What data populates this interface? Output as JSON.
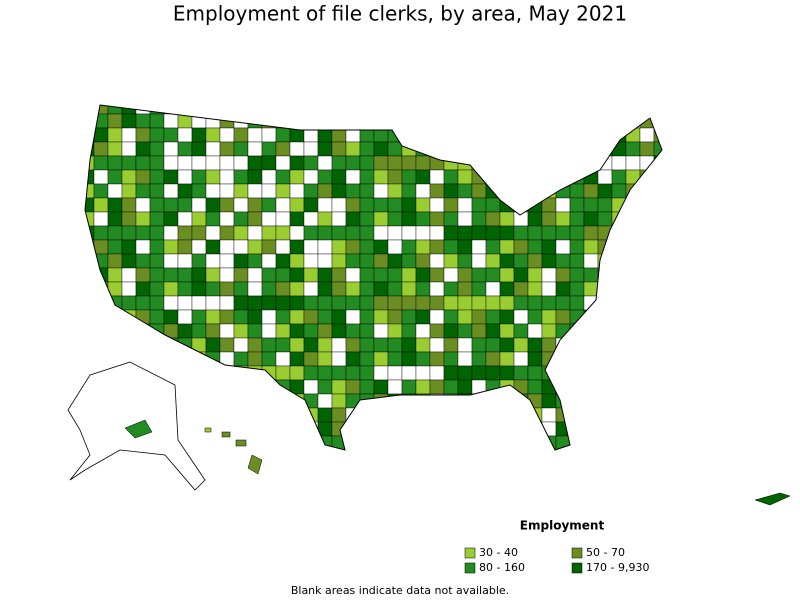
{
  "title": "Employment of file clerks, by area, May 2021",
  "legend": {
    "title": "Employment",
    "items": [
      {
        "label": "30 - 40",
        "color": "#9acd32"
      },
      {
        "label": "50 - 70",
        "color": "#6b8e23"
      },
      {
        "label": "80 - 160",
        "color": "#228b22"
      },
      {
        "label": "170 - 9,930",
        "color": "#006400"
      }
    ]
  },
  "note": "Blank areas indicate data not available."
}
